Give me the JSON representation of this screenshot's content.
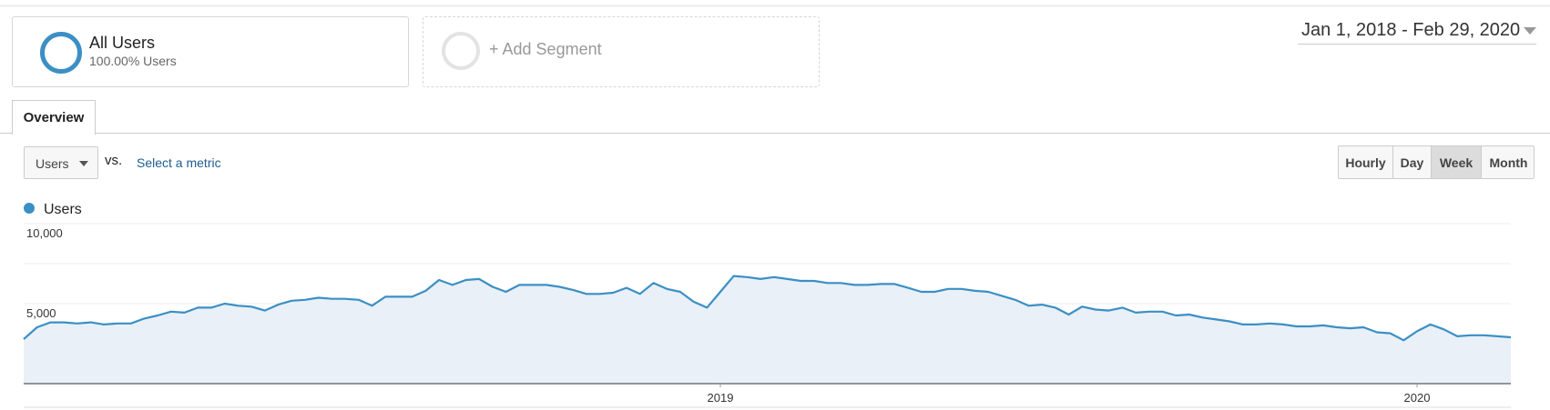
{
  "segments": [
    {
      "name": "All Users",
      "detail": "100.00% Users"
    },
    {
      "name": "+ Add Segment"
    }
  ],
  "date_range": "Jan 1, 2018 - Feb 29, 2020",
  "tabs": [
    "Overview"
  ],
  "metric": {
    "selected": "Users",
    "vs": "vs.",
    "compare": "Select a metric"
  },
  "granularity": {
    "options": [
      "Hourly",
      "Day",
      "Week",
      "Month"
    ],
    "active": 2
  },
  "chart_data": {
    "type": "line",
    "x": [
      0,
      1,
      2,
      3,
      4,
      5,
      6,
      7,
      8,
      9,
      10,
      11,
      12,
      13,
      14,
      15,
      16,
      17,
      18,
      19,
      20,
      21,
      22,
      23,
      24,
      25,
      26,
      27,
      28,
      29,
      30,
      31,
      32,
      33,
      34,
      35,
      36,
      37,
      38,
      39,
      40,
      41,
      42,
      43,
      44,
      45,
      46,
      47,
      48,
      49,
      50,
      51,
      52,
      53,
      54,
      55,
      56,
      57,
      58,
      59,
      60,
      61,
      62,
      63,
      64,
      65,
      66,
      67,
      68,
      69,
      70,
      71,
      72,
      73,
      74,
      75,
      76,
      77,
      78,
      79,
      80,
      81,
      82,
      83,
      84,
      85,
      86,
      87,
      88,
      89,
      90,
      91,
      92,
      93,
      94,
      95,
      96,
      97,
      98,
      99,
      100,
      101,
      102,
      103,
      104,
      105,
      106,
      107,
      108,
      109,
      110,
      111
    ],
    "series": [
      {
        "name": "Users",
        "color": "#3b8fc4",
        "fill": "#e9f0f7",
        "values": [
          2780,
          3520,
          3830,
          3830,
          3760,
          3830,
          3700,
          3760,
          3760,
          4070,
          4260,
          4500,
          4440,
          4750,
          4750,
          5000,
          4870,
          4810,
          4570,
          4940,
          5180,
          5240,
          5370,
          5300,
          5300,
          5240,
          4870,
          5430,
          5430,
          5430,
          5800,
          6480,
          6170,
          6480,
          6540,
          6050,
          5740,
          6170,
          6170,
          6170,
          6050,
          5860,
          5610,
          5610,
          5680,
          5990,
          5610,
          6290,
          5920,
          5740,
          5120,
          4750,
          5740,
          6730,
          6660,
          6540,
          6660,
          6540,
          6420,
          6420,
          6290,
          6290,
          6170,
          6170,
          6230,
          6230,
          5990,
          5740,
          5740,
          5920,
          5920,
          5800,
          5740,
          5490,
          5240,
          4870,
          4940,
          4750,
          4320,
          4810,
          4630,
          4570,
          4750,
          4440,
          4500,
          4500,
          4260,
          4320,
          4130,
          4010,
          3890,
          3700,
          3700,
          3760,
          3700,
          3580,
          3580,
          3640,
          3520,
          3460,
          3520,
          3210,
          3150,
          2710,
          3270,
          3700,
          3390,
          2960,
          3020,
          3020,
          2960,
          2900
        ]
      }
    ],
    "xlim": [
      0,
      111
    ],
    "xticks": [
      {
        "value": 52,
        "label": "2019"
      },
      {
        "value": 104,
        "label": "2020"
      }
    ],
    "ylim": [
      0,
      10000
    ],
    "yticks": [
      {
        "value": 5000,
        "label": "5,000"
      },
      {
        "value": 10000,
        "label": "10,000"
      }
    ],
    "ygrid": [
      2500,
      5000,
      7500,
      10000
    ]
  }
}
